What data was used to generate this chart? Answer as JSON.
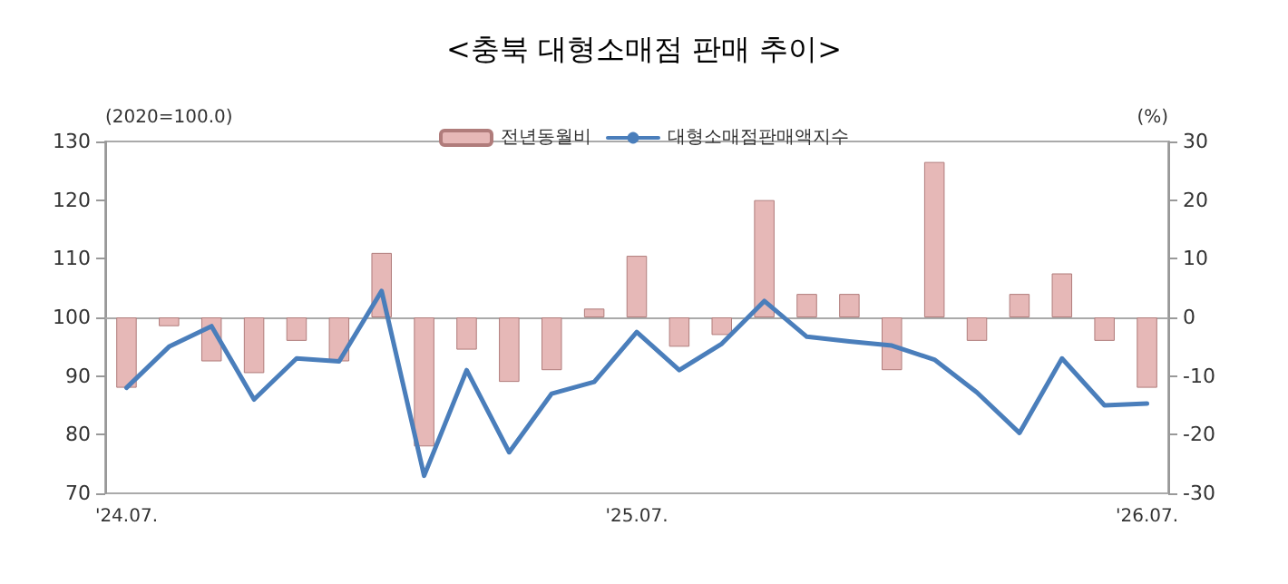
{
  "chart_data": {
    "type": "bar",
    "title": "<충북 대형소매점 판매 추이>",
    "ylabel": "(2020=100.0)",
    "y2label": "(%)",
    "categories": [
      "'24.07.",
      null,
      null,
      null,
      null,
      null,
      null,
      null,
      null,
      null,
      null,
      null,
      "'25.07.",
      null,
      null,
      null,
      null,
      null,
      null,
      null,
      null,
      null,
      null,
      null,
      "'26.07."
    ],
    "series": [
      {
        "name": "전년동월비",
        "axis": "y2",
        "color": "#e6b8b7",
        "values": [
          -12,
          -1.5,
          -7.5,
          -9.5,
          -4,
          -7.5,
          11,
          -22,
          -5.5,
          -11,
          -9,
          1.5,
          10.5,
          -5,
          -3,
          20,
          4,
          4,
          -9,
          26.5,
          -4,
          4,
          7.5,
          -4,
          -12
        ]
      },
      {
        "name": "대형소매점판매액지수",
        "type": "line",
        "color": "#4a7ebb",
        "values": [
          88,
          95,
          98.5,
          86,
          93,
          92.5,
          104.5,
          73,
          91,
          77,
          87,
          89,
          97.5,
          91,
          95.5,
          102.8,
          96.7,
          95.9,
          95.2,
          92.8,
          87.2,
          80.3,
          93,
          85,
          85.3
        ]
      }
    ],
    "ylim": [
      70,
      130
    ],
    "yticks": [
      70,
      80,
      90,
      100,
      110,
      120,
      130
    ],
    "y2lim": [
      -30,
      30
    ],
    "y2ticks": [
      -30,
      -20,
      -10,
      0,
      10,
      20,
      30
    ],
    "legend": "top",
    "marker": "none",
    "line_style": "solid"
  }
}
